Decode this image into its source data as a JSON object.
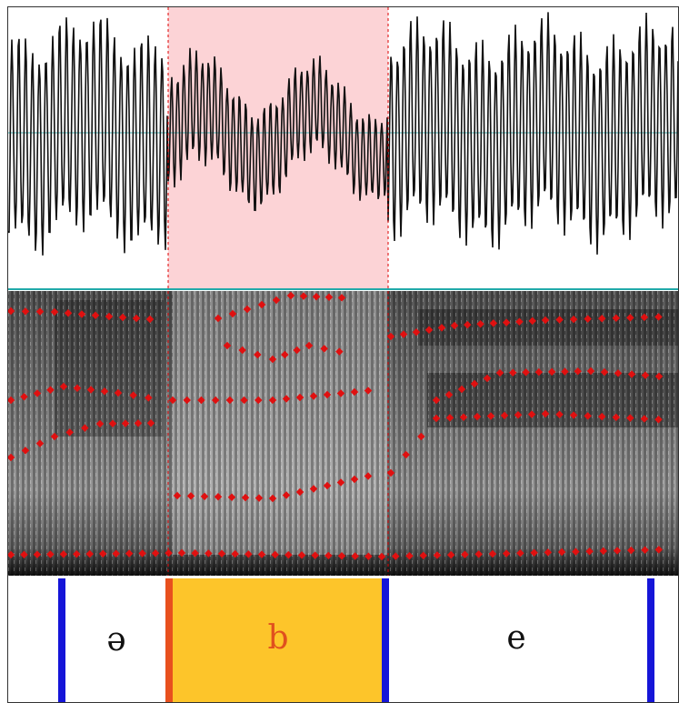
{
  "tier": {
    "intervals": [
      {
        "label": "ə"
      },
      {
        "label": "b"
      },
      {
        "label": "e"
      }
    ]
  }
}
